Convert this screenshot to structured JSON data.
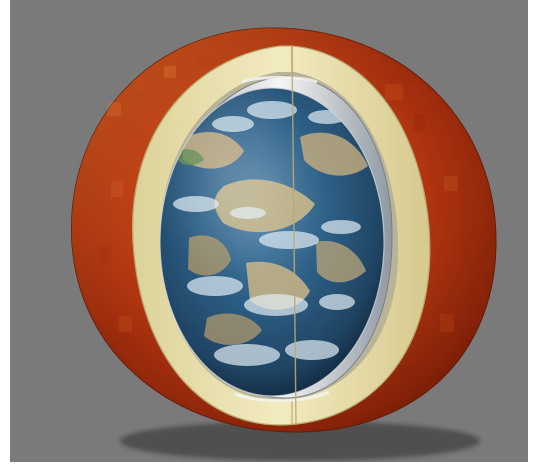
{
  "scene": {
    "subject": "cutaway-sphere",
    "background_color": "#7a7a7a",
    "outer_shell_color": "#b8360f",
    "inner_rim_color": "#efe6b4",
    "core_texture": "earth",
    "core_ocean_color": "#2e5f86",
    "core_land_color": "#c8ae7e",
    "core_cloud_color": "#e3eef5"
  }
}
